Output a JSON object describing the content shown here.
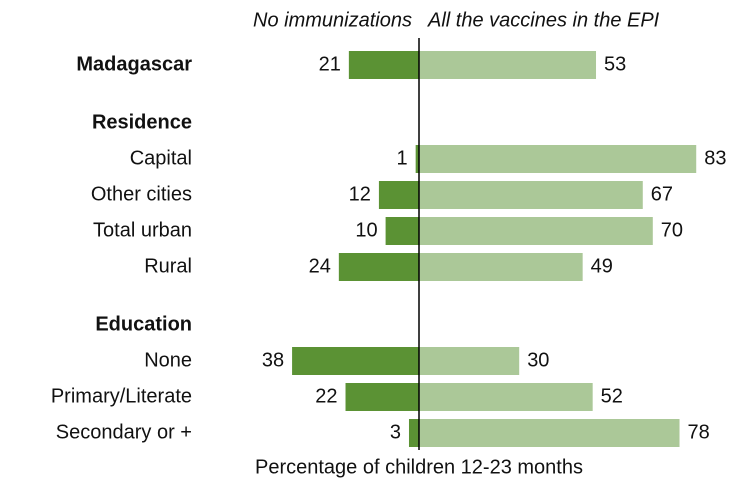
{
  "chart_data": {
    "type": "diverging_bar",
    "categories": [
      "Madagascar",
      "Residence",
      "Capital",
      "Other cities",
      "Total urban",
      "Rural",
      "Education",
      "None",
      "Primary/Literate",
      "Secondary or +"
    ],
    "bold_categories": [
      0,
      1,
      6
    ],
    "series": [
      {
        "name": "No immunizations",
        "color": "#5b9234",
        "values": [
          21,
          null,
          1,
          12,
          10,
          24,
          null,
          38,
          22,
          3
        ]
      },
      {
        "name": "All the vaccines in the EPI",
        "color": "#abc898",
        "values": [
          53,
          null,
          83,
          67,
          70,
          49,
          null,
          30,
          52,
          78
        ]
      }
    ],
    "xlabel": "Percentage of children 12-23 months"
  }
}
